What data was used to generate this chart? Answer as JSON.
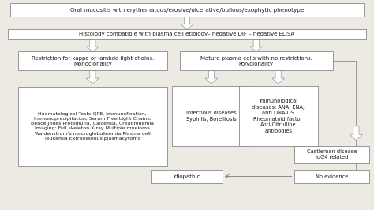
{
  "bg_color": "#ede9e3",
  "box_color": "white",
  "border_color": "#888888",
  "text_color": "#1a1a1a",
  "arrow_color": "#aaaaaa",
  "title": "Oral mucositis with erythematous/erosive/ulcerative/bullous/exophytic phenotype",
  "box1": "Histology compatible with plasma cell etiology– negative DIF – negative ELISA",
  "box2": "Restriction for kappa or lambda light chains.\nMonoclonality",
  "box3": "Mature plasma cells with no restrictions.\nPolyclonality",
  "box4": "Haematological Tests-QPE, Immunofixation,\nImmunoprecipitation, Serum Free Light Chains,\nBence Jones Proteinuria, Calcemia, Creatininemia\nImaging: Full skeleton X-ray Multiple myeloma\nWaldenstrom’s macroglobulinemia Plasma cell\nleukemia Extraosseous plasmacytoma",
  "box5": "infectious diseases\nSyphilis, Borelliosis",
  "box6": "Immunological\ndiseases: ANA, ENA,\nanti DNA-DS\nRheumatoid factor\nAnti-Citrulline\nantibodies",
  "box7": "Castleman disease\nIgG4 related",
  "box8": "No evidence",
  "box9": "Idiopathic",
  "figsize": [
    4.74,
    2.66
  ],
  "dpi": 100
}
